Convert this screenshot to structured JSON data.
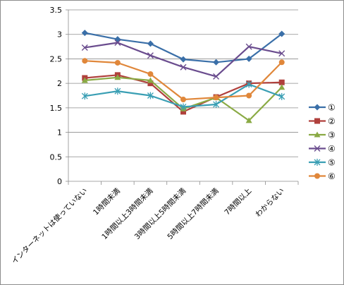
{
  "chart_data": {
    "type": "line",
    "categories": [
      "インターネットは使っていない",
      "1時間未満",
      "1時間以上3時間未満",
      "3時間以上5時間未満",
      "5時間以上7時間未満",
      "7時間以上",
      "わからない"
    ],
    "ylim": [
      0,
      3.5
    ],
    "yticks": [
      "0",
      "0.5",
      "1",
      "1.5",
      "2",
      "2.5",
      "3",
      "3.5"
    ],
    "grid": true,
    "legend_position": "right",
    "series": [
      {
        "name": "①",
        "color": "#3a6fa8",
        "marker": "diamond",
        "values": [
          3.03,
          2.9,
          2.81,
          2.49,
          2.43,
          2.5,
          3.01
        ]
      },
      {
        "name": "②",
        "color": "#b0403c",
        "marker": "square",
        "values": [
          2.11,
          2.17,
          2.0,
          1.42,
          1.72,
          2.0,
          2.02
        ]
      },
      {
        "name": "③",
        "color": "#8aaa44",
        "marker": "triangle",
        "values": [
          2.06,
          2.12,
          2.06,
          1.48,
          1.71,
          1.24,
          1.92
        ]
      },
      {
        "name": "④",
        "color": "#6a4c8e",
        "marker": "x",
        "values": [
          2.73,
          2.83,
          2.57,
          2.33,
          2.14,
          2.75,
          2.61
        ]
      },
      {
        "name": "⑤",
        "color": "#3a9fb4",
        "marker": "star",
        "values": [
          1.74,
          1.84,
          1.75,
          1.52,
          1.57,
          1.98,
          1.73
        ]
      },
      {
        "name": "⑥",
        "color": "#e0873a",
        "marker": "circle",
        "values": [
          2.46,
          2.42,
          2.19,
          1.67,
          1.71,
          1.75,
          2.43
        ]
      }
    ]
  }
}
